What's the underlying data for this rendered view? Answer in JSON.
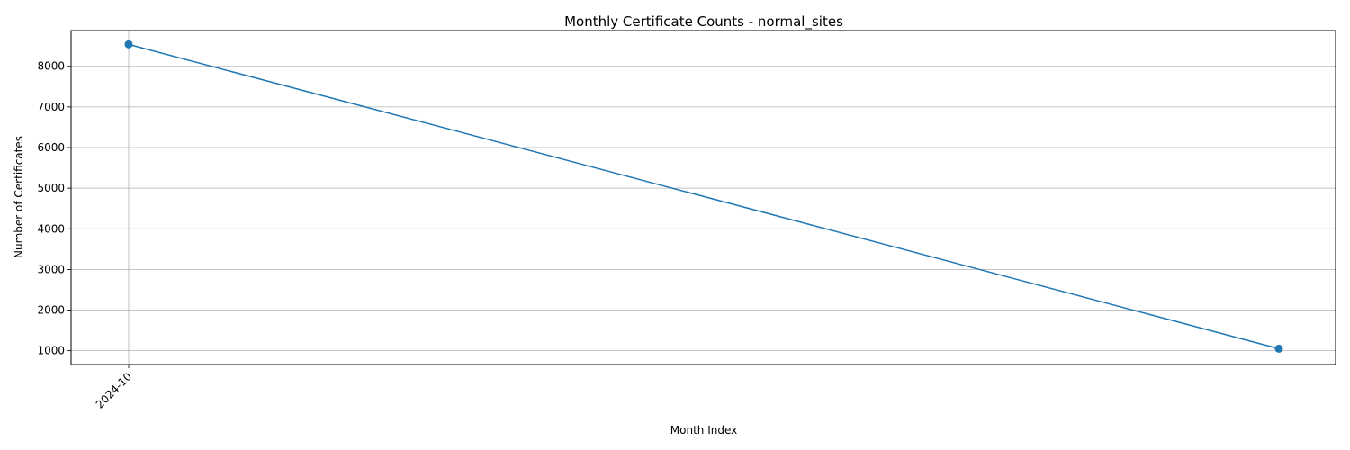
{
  "chart_data": {
    "type": "line",
    "title": "Monthly Certificate Counts - normal_sites",
    "xlabel": "Month Index",
    "ylabel": "Number of Certificates",
    "x_tick_labels": [
      "2024-10"
    ],
    "x": [
      "2024-10",
      ""
    ],
    "y_ticks": [
      1000,
      2000,
      3000,
      4000,
      5000,
      6000,
      7000,
      8000
    ],
    "ylim": [
      660,
      8880
    ],
    "grid": true,
    "series": [
      {
        "values": [
          8540,
          1050
        ],
        "color": "#1f77b4",
        "marker": "circle"
      }
    ]
  }
}
